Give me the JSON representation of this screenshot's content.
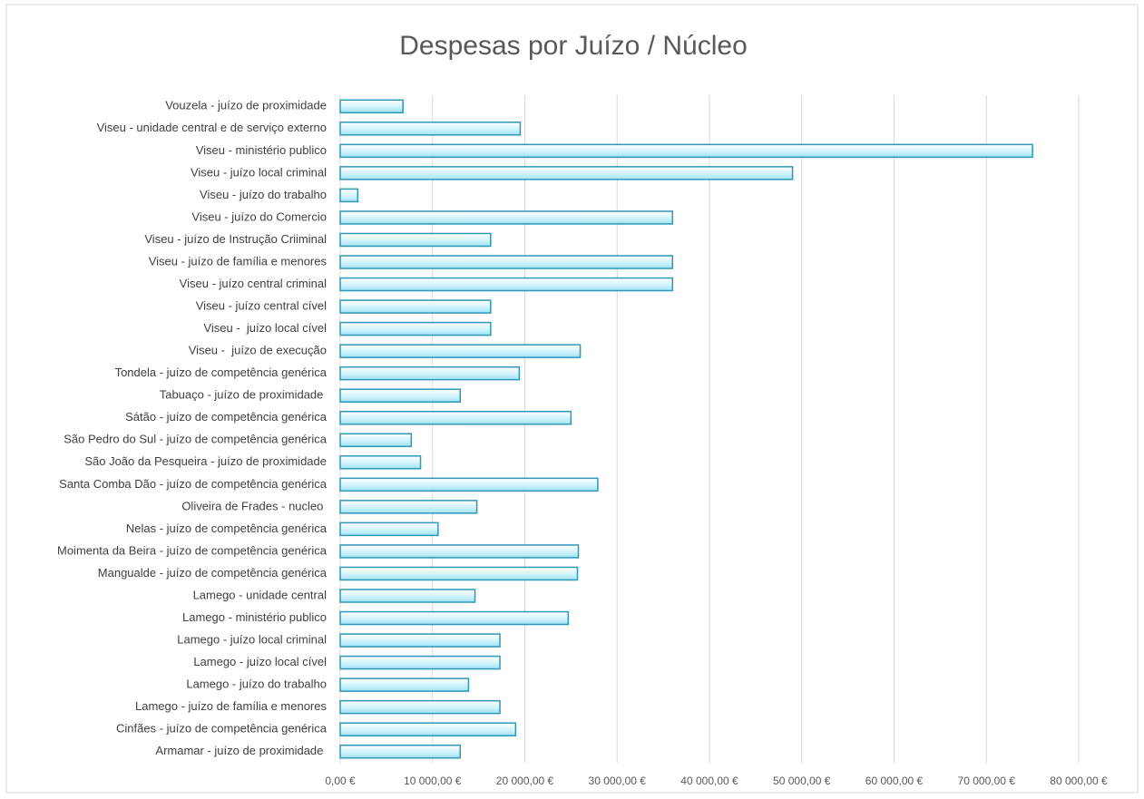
{
  "chart_data": {
    "type": "barh",
    "title": "Despesas por Juízo / Núcleo",
    "categories": [
      "Vouzela - juízo de proximidade",
      "Viseu - unidade central e de serviço externo",
      "Viseu - ministério publico",
      "Viseu - juízo local criminal",
      "Viseu - juízo do trabalho",
      "Viseu - juízo do Comercio",
      "Viseu - juízo de Instrução Criiminal",
      "Viseu - juízo de família e menores",
      "Viseu - juízo central criminal",
      "Viseu - juízo central cível",
      "Viseu -  juízo local cível",
      "Viseu -  juízo de execução",
      "Tondela - juízo de competência genérica",
      "Tabuaço - juízo de proximidade ",
      "Sátão - juízo de competência genérica",
      "São Pedro do Sul - juízo de competência genérica",
      "São João da Pesqueira - juízo de proximidade",
      "Santa Comba Dão - juízo de competência genérica",
      "Oliveira de Frades - nucleo ",
      "Nelas - juízo de competência genérica",
      "Moimenta da Beira - juízo de competência genérica",
      "Mangualde - juízo de competência genérica",
      "Lamego - unidade central",
      "Lamego - ministério publico",
      "Lamego - juízo local criminal",
      "Lamego - juízo local cível",
      "Lamego - juízo do trabalho",
      "Lamego - juízo de família e menores",
      "Cinfães - juízo de competência genérica",
      "Armamar - juízo de proximidade "
    ],
    "values": [
      6800,
      19500,
      75000,
      49000,
      1900,
      36000,
      16300,
      36000,
      36000,
      16300,
      16300,
      26000,
      19400,
      13000,
      25000,
      7700,
      8700,
      27900,
      14800,
      10600,
      25800,
      25700,
      14600,
      24700,
      17300,
      17300,
      13900,
      17300,
      19000,
      13000
    ],
    "color": "#c8f1fb",
    "xlim": [
      0,
      80000
    ],
    "xticks": [
      {
        "value": 0,
        "label": "0,00 €"
      },
      {
        "value": 10000,
        "label": "10 000,00 €"
      },
      {
        "value": 20000,
        "label": "20 000,00 €"
      },
      {
        "value": 30000,
        "label": "30 000,00 €"
      },
      {
        "value": 40000,
        "label": "40 000,00 €"
      },
      {
        "value": 50000,
        "label": "50 000,00 €"
      },
      {
        "value": 60000,
        "label": "60 000,00 €"
      },
      {
        "value": 70000,
        "label": "70 000,00 €"
      },
      {
        "value": 80000,
        "label": "80 000,00 €"
      }
    ],
    "grid": true
  }
}
